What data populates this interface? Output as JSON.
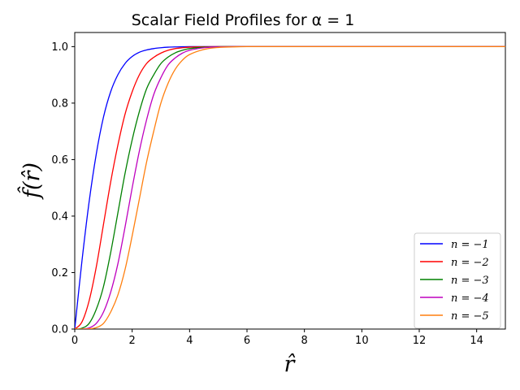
{
  "chart_data": {
    "type": "line",
    "title": "Scalar Field Profiles for α = 1",
    "xlabel": "r̂",
    "ylabel": "f̂(r̂)",
    "xlim": [
      0,
      15
    ],
    "ylim": [
      0,
      1.05
    ],
    "xticks": [
      0,
      2,
      4,
      6,
      8,
      10,
      12,
      14
    ],
    "yticks": [
      0.0,
      0.2,
      0.4,
      0.6,
      0.8,
      1.0
    ],
    "xtick_labels": [
      "0",
      "2",
      "4",
      "6",
      "8",
      "10",
      "12",
      "14"
    ],
    "ytick_labels": [
      "0.0",
      "0.2",
      "0.4",
      "0.6",
      "0.8",
      "1.0"
    ],
    "grid": false,
    "legend_position": "lower-right",
    "x": [
      0,
      0.25,
      0.5,
      0.75,
      1.0,
      1.25,
      1.5,
      1.75,
      2.0,
      2.25,
      2.5,
      2.75,
      3.0,
      3.25,
      3.5,
      3.75,
      4.0,
      4.5,
      5.0,
      5.5,
      6.0,
      7.0,
      8.0,
      10.0,
      12.0,
      15.0
    ],
    "series": [
      {
        "name": "n = −1",
        "color": "#0000ff",
        "values": [
          0.0,
          0.24,
          0.45,
          0.62,
          0.75,
          0.84,
          0.9,
          0.94,
          0.965,
          0.98,
          0.988,
          0.993,
          0.996,
          0.998,
          0.999,
          0.9995,
          1.0,
          1.0,
          1.0,
          1.0,
          1.0,
          1.0,
          1.0,
          1.0,
          1.0,
          1.0
        ]
      },
      {
        "name": "n = −2",
        "color": "#ff0000",
        "values": [
          0.0,
          0.025,
          0.1,
          0.22,
          0.37,
          0.52,
          0.65,
          0.76,
          0.84,
          0.9,
          0.94,
          0.962,
          0.977,
          0.987,
          0.993,
          0.996,
          0.998,
          0.9995,
          1.0,
          1.0,
          1.0,
          1.0,
          1.0,
          1.0,
          1.0,
          1.0
        ]
      },
      {
        "name": "n = −3",
        "color": "#008000",
        "values": [
          0.0,
          0.003,
          0.02,
          0.07,
          0.15,
          0.27,
          0.41,
          0.55,
          0.67,
          0.77,
          0.85,
          0.9,
          0.94,
          0.963,
          0.978,
          0.987,
          0.993,
          0.998,
          0.9995,
          1.0,
          1.0,
          1.0,
          1.0,
          1.0,
          1.0,
          1.0
        ]
      },
      {
        "name": "n = −4",
        "color": "#bf00bf",
        "values": [
          0.0,
          0.0,
          0.004,
          0.02,
          0.06,
          0.13,
          0.23,
          0.36,
          0.5,
          0.63,
          0.74,
          0.83,
          0.89,
          0.935,
          0.96,
          0.977,
          0.987,
          0.996,
          0.999,
          1.0,
          1.0,
          1.0,
          1.0,
          1.0,
          1.0,
          1.0
        ]
      },
      {
        "name": "n = −5",
        "color": "#ff7f0e",
        "values": [
          0.0,
          0.0,
          0.001,
          0.005,
          0.02,
          0.06,
          0.12,
          0.21,
          0.33,
          0.46,
          0.59,
          0.7,
          0.8,
          0.87,
          0.92,
          0.952,
          0.972,
          0.99,
          0.997,
          0.999,
          1.0,
          1.0,
          1.0,
          1.0,
          1.0,
          1.0
        ]
      }
    ]
  }
}
